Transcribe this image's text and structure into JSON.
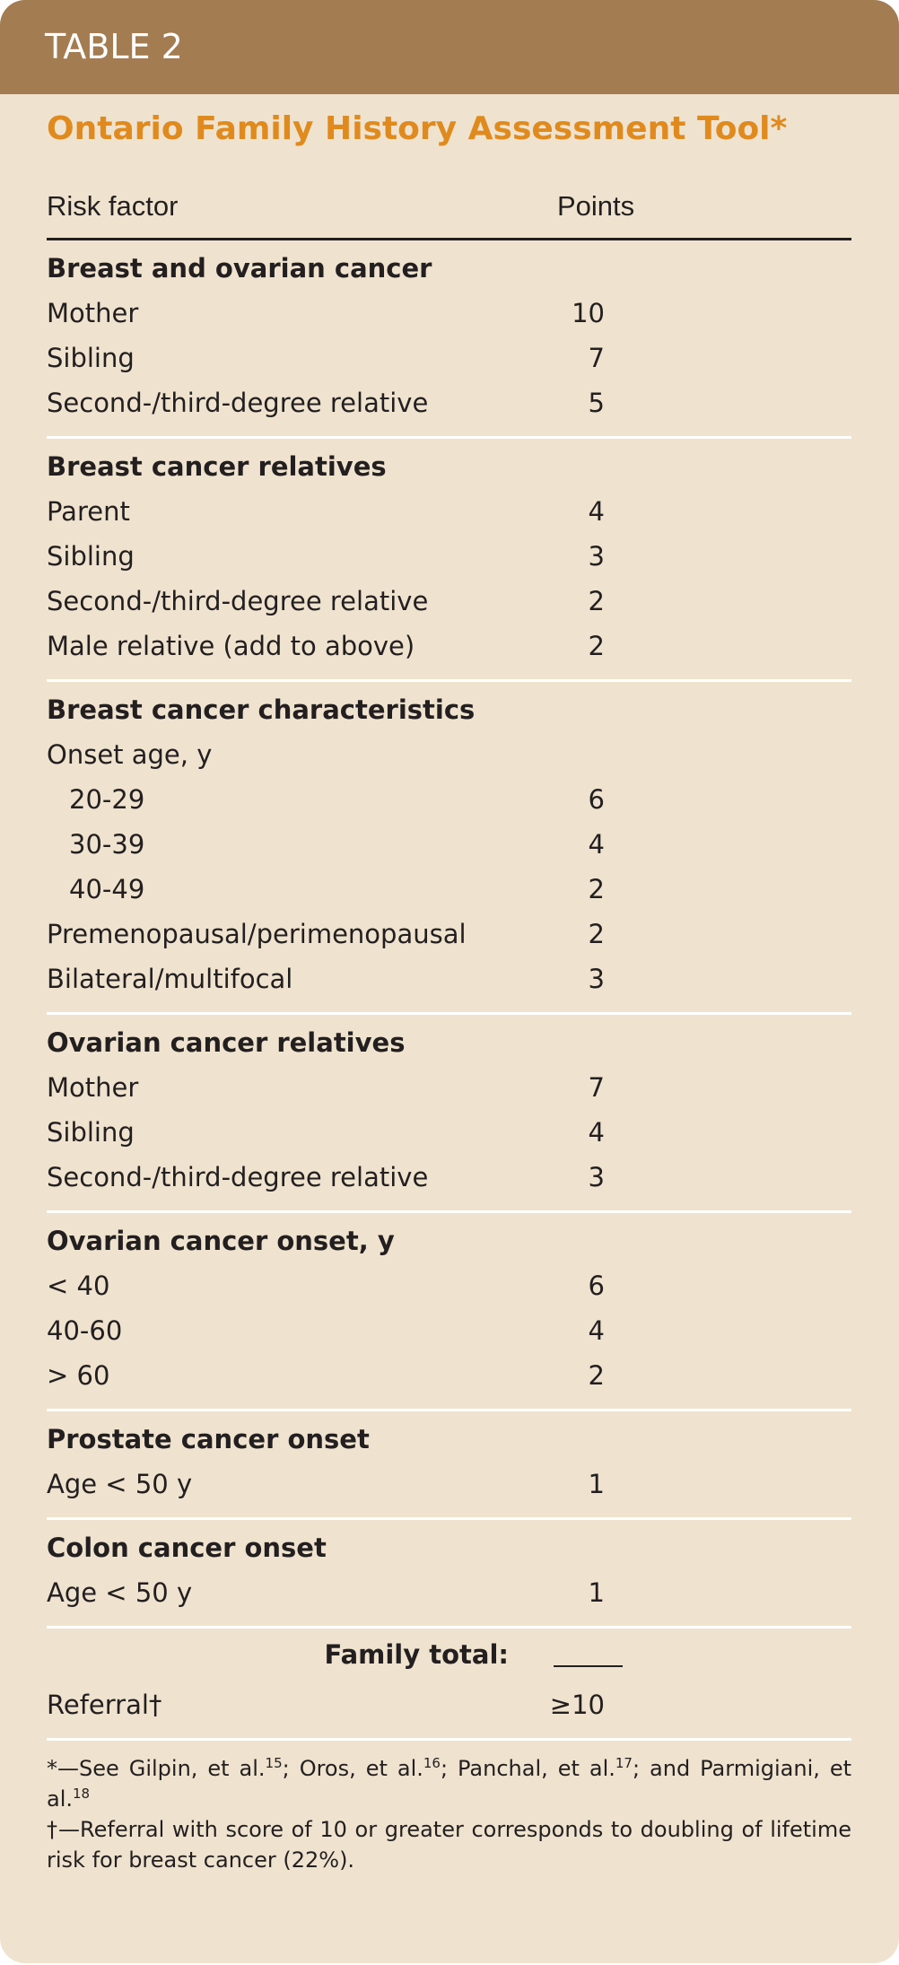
{
  "header": {
    "label": "TABLE 2",
    "title": "Ontario Family History Assessment Tool*"
  },
  "table": {
    "columns": [
      "Risk factor",
      "Points"
    ],
    "sections": [
      {
        "title": "Breast and ovarian cancer",
        "rows": [
          {
            "label": "Mother",
            "points": 10
          },
          {
            "label": "Sibling",
            "points": 7
          },
          {
            "label": "Second-/third-degree relative",
            "points": 5
          }
        ]
      },
      {
        "title": "Breast cancer relatives",
        "rows": [
          {
            "label": "Parent",
            "points": 4
          },
          {
            "label": "Sibling",
            "points": 3
          },
          {
            "label": "Second-/third-degree relative",
            "points": 2
          },
          {
            "label": "Male relative (add to above)",
            "points": 2
          }
        ]
      },
      {
        "title": "Breast cancer characteristics",
        "rows": [
          {
            "label": "Onset age, y",
            "rows": [
              {
                "label": "20-29",
                "points": 6
              },
              {
                "label": "30-39",
                "points": 4
              },
              {
                "label": "40-49",
                "points": 2
              }
            ]
          },
          {
            "label": "Premenopausal/perimenopausal",
            "points": 2
          },
          {
            "label": "Bilateral/multifocal",
            "points": 3
          }
        ]
      },
      {
        "title": "Ovarian cancer relatives",
        "rows": [
          {
            "label": "Mother",
            "points": 7
          },
          {
            "label": "Sibling",
            "points": 4
          },
          {
            "label": "Second-/third-degree relative",
            "points": 3
          }
        ]
      },
      {
        "title": "Ovarian cancer onset, y",
        "rows": [
          {
            "label": "< 40",
            "points": 6
          },
          {
            "label": "40-60",
            "points": 4
          },
          {
            "label": "> 60",
            "points": 2
          }
        ]
      },
      {
        "title": "Prostate cancer onset",
        "rows": [
          {
            "label": "Age < 50 y",
            "points": 1
          }
        ]
      },
      {
        "title": "Colon cancer onset",
        "rows": [
          {
            "label": "Age < 50 y",
            "points": 1
          }
        ]
      }
    ],
    "total": {
      "label": "Family total:"
    },
    "referral": {
      "label": "Referral†",
      "points": "≥10"
    }
  },
  "footnotes": [
    {
      "parts": [
        "*—See Gilpin, et al.",
        "15",
        "; Oros, et al.",
        "16",
        "; Panchal, et al.",
        "17",
        "; and Parmigiani, et al.",
        "18"
      ]
    },
    {
      "parts": [
        "†—Referral with score of 10 or greater corresponds to doubling of lifetime risk for breast cancer (22%)."
      ]
    }
  ]
}
